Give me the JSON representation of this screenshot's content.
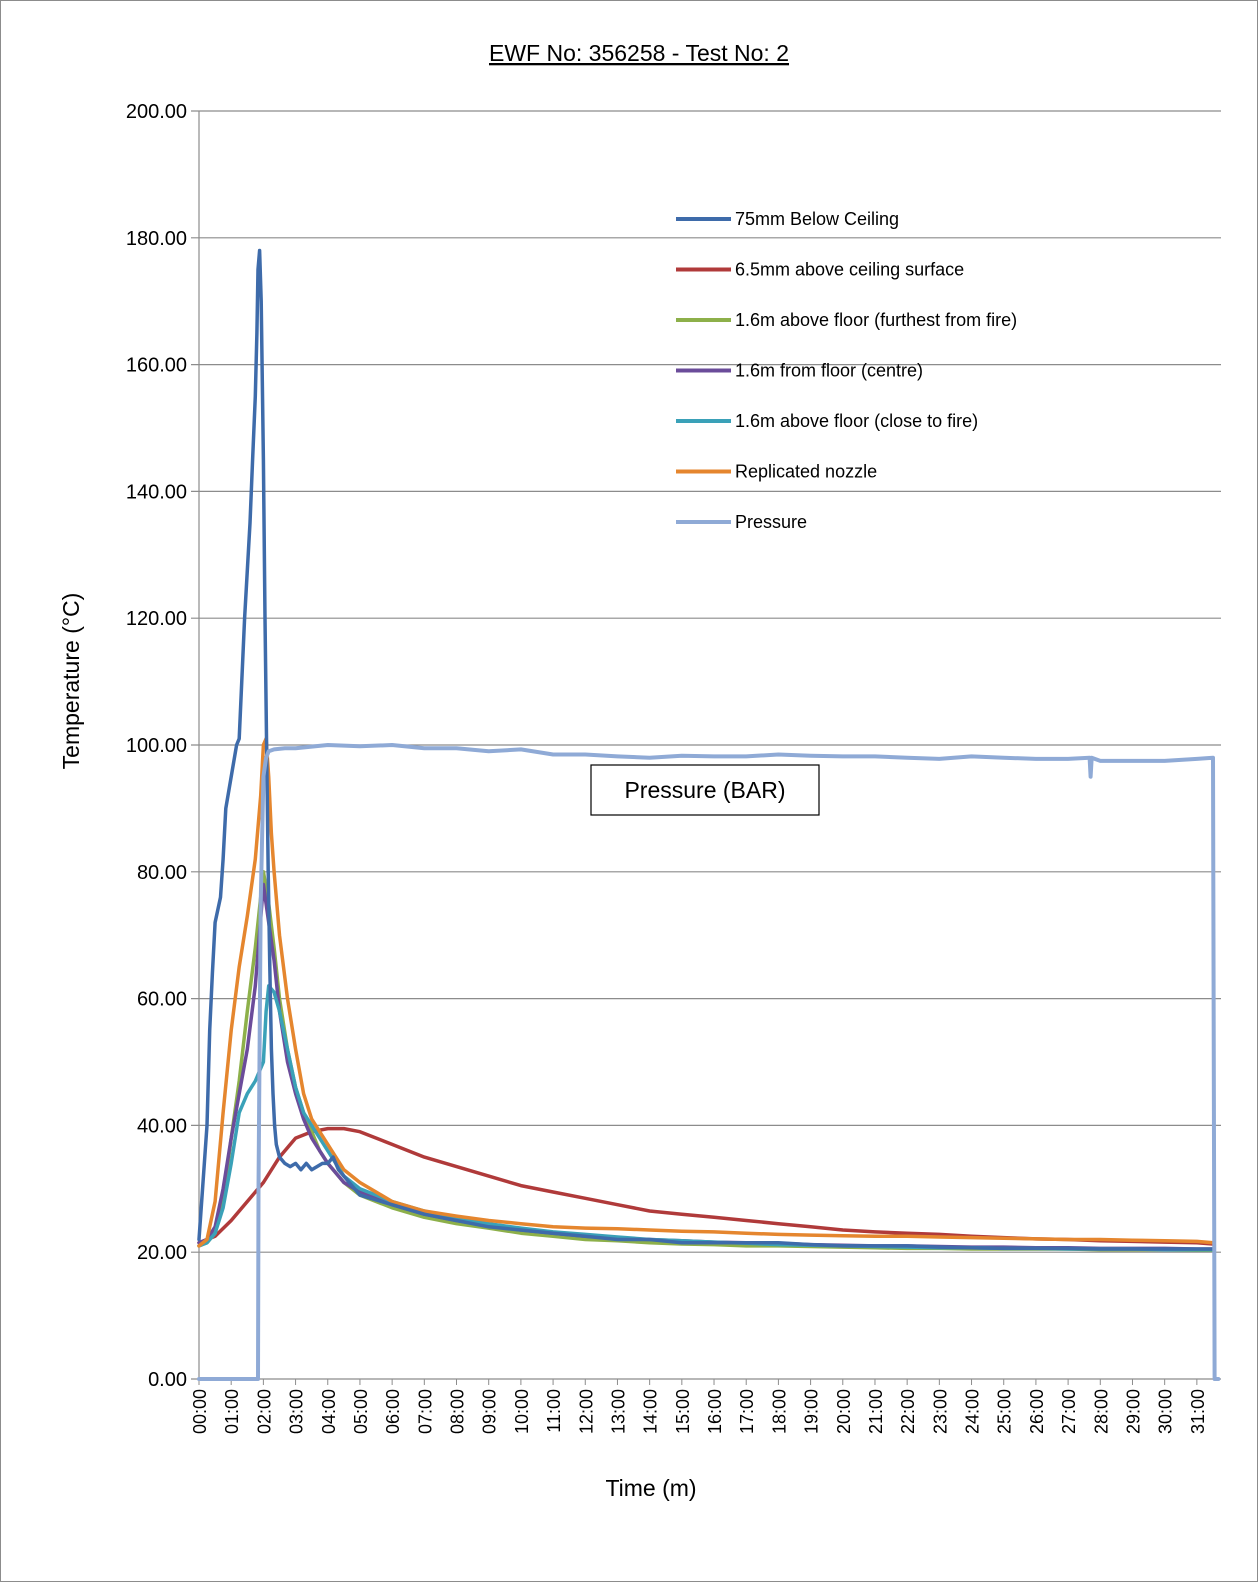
{
  "chart_data": {
    "type": "line",
    "title": "EWF No: 356258 - Test No: 2",
    "xlabel": "Time (m)",
    "ylabel": "Temperature (°C)",
    "ylim": [
      0,
      200
    ],
    "yticks": [
      "0.00",
      "20.00",
      "40.00",
      "60.00",
      "80.00",
      "100.00",
      "120.00",
      "140.00",
      "160.00",
      "180.00",
      "200.00"
    ],
    "xlim": [
      "00:00",
      "31:45"
    ],
    "xticks": [
      "00:00",
      "01:00",
      "02:00",
      "03:00",
      "04:00",
      "05:00",
      "06:00",
      "07:00",
      "08:00",
      "09:00",
      "10:00",
      "11:00",
      "12:00",
      "13:00",
      "14:00",
      "15:00",
      "16:00",
      "17:00",
      "18:00",
      "19:00",
      "20:00",
      "21:00",
      "22:00",
      "23:00",
      "24:00",
      "25:00",
      "26:00",
      "27:00",
      "28:00",
      "29:00",
      "30:00",
      "31:00"
    ],
    "grid": "horizontal",
    "legend_position": "upper-right",
    "annotation": "Pressure (BAR)",
    "series": [
      {
        "name": "75mm Below Ceiling",
        "color": "#3E6BAA",
        "x": [
          "00:00",
          "00:15",
          "00:20",
          "00:25",
          "00:30",
          "00:40",
          "00:45",
          "00:50",
          "01:00",
          "01:10",
          "01:15",
          "01:25",
          "01:35",
          "01:40",
          "01:45",
          "01:48",
          "01:50",
          "01:53",
          "01:56",
          "02:00",
          "02:03",
          "02:06",
          "02:09",
          "02:12",
          "02:15",
          "02:18",
          "02:21",
          "02:24",
          "02:30",
          "02:40",
          "02:50",
          "03:00",
          "03:10",
          "03:20",
          "03:30",
          "03:40",
          "03:50",
          "04:00",
          "04:10",
          "04:20",
          "05:00",
          "06:00",
          "07:00",
          "08:00",
          "09:00",
          "10:00",
          "11:00",
          "12:00",
          "13:00",
          "14:00",
          "15:00",
          "16:00",
          "17:00",
          "18:00",
          "19:00",
          "20:00",
          "21:00",
          "22:00",
          "23:00",
          "24:00",
          "25:00",
          "26:00",
          "27:00",
          "28:00",
          "29:00",
          "30:00",
          "31:00",
          "31:30"
        ],
        "y": [
          22,
          40,
          55,
          64,
          72,
          76,
          82,
          90,
          95,
          100,
          101,
          120,
          135,
          145,
          155,
          165,
          175,
          178,
          170,
          145,
          120,
          100,
          80,
          65,
          52,
          45,
          40,
          37,
          35,
          34,
          33.5,
          34,
          33,
          34,
          33,
          33.5,
          34,
          34,
          35,
          33,
          29,
          27.5,
          26,
          25,
          24,
          23.5,
          23,
          22.5,
          22,
          22,
          21.5,
          21.5,
          21.5,
          21.5,
          21.2,
          21,
          21,
          21,
          20.8,
          20.7,
          20.6,
          20.6,
          20.6,
          20.5,
          20.5,
          20.5,
          20.5,
          20.5
        ]
      },
      {
        "name": "6.5mm above ceiling surface",
        "color": "#B03A3A",
        "x": [
          "00:00",
          "00:30",
          "01:00",
          "01:30",
          "02:00",
          "02:30",
          "03:00",
          "03:30",
          "04:00",
          "04:30",
          "05:00",
          "06:00",
          "07:00",
          "08:00",
          "09:00",
          "10:00",
          "11:00",
          "12:00",
          "13:00",
          "14:00",
          "15:00",
          "16:00",
          "17:00",
          "18:00",
          "19:00",
          "20:00",
          "21:00",
          "22:00",
          "23:00",
          "24:00",
          "25:00",
          "26:00",
          "27:00",
          "28:00",
          "29:00",
          "30:00",
          "31:00",
          "31:30"
        ],
        "y": [
          21.5,
          22.5,
          25,
          28,
          31,
          35,
          38,
          39,
          39.5,
          39.5,
          39,
          37,
          35,
          33.5,
          32,
          30.5,
          29.5,
          28.5,
          27.5,
          26.5,
          26,
          25.5,
          25,
          24.5,
          24,
          23.5,
          23.2,
          23,
          22.8,
          22.5,
          22.3,
          22.1,
          22,
          21.8,
          21.7,
          21.6,
          21.5,
          21.3
        ]
      },
      {
        "name": "1.6m above floor (furthest from fire)",
        "color": "#8DB04A",
        "x": [
          "00:00",
          "00:15",
          "00:30",
          "00:45",
          "01:00",
          "01:15",
          "01:30",
          "01:45",
          "02:00",
          "02:10",
          "02:20",
          "02:30",
          "02:45",
          "03:00",
          "03:15",
          "03:30",
          "03:45",
          "04:00",
          "04:30",
          "05:00",
          "06:00",
          "07:00",
          "08:00",
          "09:00",
          "10:00",
          "11:00",
          "12:00",
          "13:00",
          "14:00",
          "15:00",
          "16:00",
          "17:00",
          "18:00",
          "19:00",
          "20:00",
          "21:00",
          "22:00",
          "23:00",
          "24:00",
          "25:00",
          "26:00",
          "27:00",
          "28:00",
          "29:00",
          "30:00",
          "31:00",
          "31:30"
        ],
        "y": [
          21,
          21.5,
          23,
          28,
          38,
          47,
          58,
          68,
          80,
          75,
          68,
          60,
          52,
          46,
          42,
          39,
          36,
          34,
          31,
          29,
          27,
          25.5,
          24.5,
          23.8,
          23,
          22.5,
          22,
          21.8,
          21.5,
          21.3,
          21.2,
          21,
          21,
          20.9,
          20.8,
          20.7,
          20.6,
          20.6,
          20.5,
          20.5,
          20.5,
          20.5,
          20.4,
          20.4,
          20.4,
          20.3,
          20.3
        ]
      },
      {
        "name": "1.6m from floor (centre)",
        "color": "#6B4C9A",
        "x": [
          "00:00",
          "00:15",
          "00:30",
          "00:45",
          "01:00",
          "01:15",
          "01:30",
          "01:45",
          "02:00",
          "02:10",
          "02:20",
          "02:30",
          "02:45",
          "03:00",
          "03:15",
          "03:30",
          "03:45",
          "04:00",
          "04:30",
          "05:00",
          "06:00",
          "07:00",
          "08:00",
          "09:00",
          "10:00",
          "11:00",
          "12:00",
          "13:00",
          "14:00",
          "15:00",
          "16:00",
          "17:00",
          "18:00",
          "19:00",
          "20:00",
          "21:00",
          "22:00",
          "23:00",
          "24:00",
          "25:00",
          "26:00",
          "27:00",
          "28:00",
          "29:00",
          "30:00",
          "31:00",
          "31:30"
        ],
        "y": [
          21.5,
          22,
          24,
          30,
          38,
          45,
          52,
          62,
          78,
          72,
          66,
          58,
          50,
          45,
          41,
          38,
          36,
          34,
          31,
          29.5,
          27.5,
          26,
          25,
          24.2,
          23.5,
          23,
          22.5,
          22.2,
          22,
          21.8,
          21.6,
          21.5,
          21.4,
          21.2,
          21.1,
          21,
          21,
          20.9,
          20.8,
          20.8,
          20.7,
          20.7,
          20.6,
          20.6,
          20.6,
          20.5,
          20.5
        ]
      },
      {
        "name": "1.6m above floor (close to fire)",
        "color": "#3AA1B8",
        "x": [
          "00:00",
          "00:15",
          "00:30",
          "00:45",
          "01:00",
          "01:15",
          "01:30",
          "01:45",
          "02:00",
          "02:05",
          "02:10",
          "02:20",
          "02:30",
          "02:45",
          "03:00",
          "03:15",
          "03:30",
          "03:45",
          "04:00",
          "04:30",
          "05:00",
          "06:00",
          "07:00",
          "08:00",
          "09:00",
          "10:00",
          "11:00",
          "12:00",
          "13:00",
          "14:00",
          "15:00",
          "16:00",
          "17:00",
          "18:00",
          "19:00",
          "20:00",
          "21:00",
          "22:00",
          "23:00",
          "24:00",
          "25:00",
          "26:00",
          "27:00",
          "28:00",
          "29:00",
          "30:00",
          "31:00",
          "31:30"
        ],
        "y": [
          21,
          21.5,
          23,
          27,
          34,
          42,
          45,
          47,
          50,
          58,
          62,
          61,
          58,
          52,
          46,
          42,
          40,
          38,
          36,
          32,
          30,
          28,
          26.5,
          25.2,
          24.5,
          23.8,
          23.2,
          22.8,
          22.4,
          22,
          21.8,
          21.6,
          21.4,
          21.2,
          21.1,
          21,
          20.9,
          20.8,
          20.7,
          20.7,
          20.6,
          20.6,
          20.5,
          20.5,
          20.5,
          20.4,
          20.4,
          20.4
        ]
      },
      {
        "name": "Replicated nozzle",
        "color": "#E5862E",
        "x": [
          "00:00",
          "00:15",
          "00:30",
          "00:45",
          "01:00",
          "01:15",
          "01:30",
          "01:45",
          "01:55",
          "02:00",
          "02:05",
          "02:10",
          "02:15",
          "02:20",
          "02:30",
          "02:45",
          "03:00",
          "03:15",
          "03:30",
          "03:45",
          "04:00",
          "04:30",
          "05:00",
          "06:00",
          "07:00",
          "08:00",
          "09:00",
          "10:00",
          "11:00",
          "12:00",
          "13:00",
          "14:00",
          "15:00",
          "16:00",
          "17:00",
          "18:00",
          "19:00",
          "20:00",
          "21:00",
          "22:00",
          "23:00",
          "24:00",
          "25:00",
          "26:00",
          "27:00",
          "28:00",
          "29:00",
          "30:00",
          "31:00",
          "31:30"
        ],
        "y": [
          21,
          22,
          28,
          42,
          55,
          65,
          73,
          82,
          92,
          100,
          101,
          95,
          86,
          80,
          70,
          60,
          52,
          45,
          41,
          39,
          37,
          33,
          31,
          28,
          26.5,
          25.7,
          25,
          24.5,
          24,
          23.8,
          23.7,
          23.5,
          23.3,
          23.2,
          23,
          22.8,
          22.7,
          22.6,
          22.5,
          22.5,
          22.4,
          22.3,
          22.2,
          22.1,
          22,
          22,
          21.9,
          21.8,
          21.7,
          21.5
        ]
      },
      {
        "name": "Pressure",
        "color": "#8FAAD6",
        "x": [
          "00:00",
          "01:50",
          "01:51",
          "01:55",
          "02:00",
          "02:05",
          "02:10",
          "02:20",
          "02:40",
          "03:00",
          "04:00",
          "05:00",
          "06:00",
          "07:00",
          "08:00",
          "09:00",
          "10:00",
          "11:00",
          "12:00",
          "13:00",
          "14:00",
          "15:00",
          "16:00",
          "17:00",
          "18:00",
          "19:00",
          "20:00",
          "21:00",
          "22:00",
          "23:00",
          "24:00",
          "25:00",
          "26:00",
          "27:00",
          "27:40",
          "27:42",
          "27:44",
          "28:00",
          "29:00",
          "30:00",
          "31:00",
          "31:30",
          "31:33",
          "31:40"
        ],
        "y": [
          0,
          0,
          30,
          75,
          95,
          98,
          99,
          99.3,
          99.5,
          99.5,
          100,
          99.8,
          100,
          99.5,
          99.5,
          99,
          99.3,
          98.5,
          98.5,
          98.2,
          98,
          98.3,
          98.2,
          98.2,
          98.5,
          98.3,
          98.2,
          98.2,
          98,
          97.8,
          98.2,
          98,
          97.8,
          97.8,
          98,
          95,
          98,
          97.5,
          97.5,
          97.5,
          97.8,
          98,
          0,
          0
        ]
      }
    ]
  }
}
